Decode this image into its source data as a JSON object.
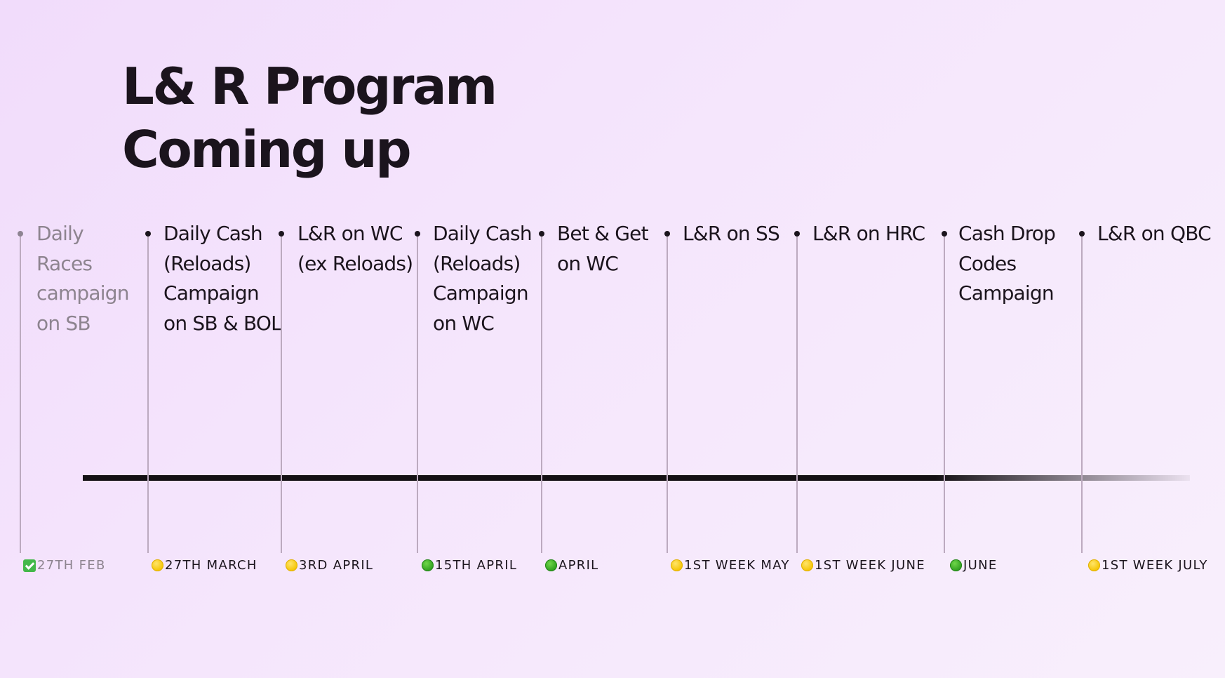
{
  "title": {
    "line1": "L& R Program",
    "line2": "Coming up"
  },
  "milestones": [
    {
      "label": "Daily\nRaces\ncampaign\non SB",
      "date": "27TH FEB",
      "status": "done",
      "status_icon": "check-box-icon"
    },
    {
      "label": "Daily Cash\n(Reloads)\nCampaign\non SB & BOL",
      "date": "27TH MARCH",
      "status": "pending",
      "status_icon": "yellow-circle-icon"
    },
    {
      "label": "L&R on WC\n(ex Reloads)",
      "date": "3RD APRIL",
      "status": "pending",
      "status_icon": "yellow-circle-icon"
    },
    {
      "label": "Daily Cash\n(Reloads)\nCampaign\non WC",
      "date": "15TH APRIL",
      "status": "ready",
      "status_icon": "green-circle-icon"
    },
    {
      "label": "Bet & Get\non WC",
      "date": "APRIL",
      "status": "ready",
      "status_icon": "green-circle-icon"
    },
    {
      "label": "L&R on SS",
      "date": "1ST WEEK MAY",
      "status": "pending",
      "status_icon": "yellow-circle-icon"
    },
    {
      "label": "L&R on HRC",
      "date": "1ST WEEK JUNE",
      "status": "pending",
      "status_icon": "yellow-circle-icon"
    },
    {
      "label": "Cash Drop\nCodes\nCampaign",
      "date": "JUNE",
      "status": "ready",
      "status_icon": "green-circle-icon"
    },
    {
      "label": "L&R on QBC",
      "date": "1ST WEEK JULY",
      "status": "pending",
      "status_icon": "yellow-circle-icon"
    }
  ],
  "colors": {
    "background": "#f3e3fc",
    "text": "#1b141d",
    "muted_text": "#8d848f",
    "axis": "#141014",
    "connector": "#bcaabf",
    "status_yellow": "#f5c400",
    "status_green": "#2e9e1e",
    "status_check": "#43b84a"
  }
}
